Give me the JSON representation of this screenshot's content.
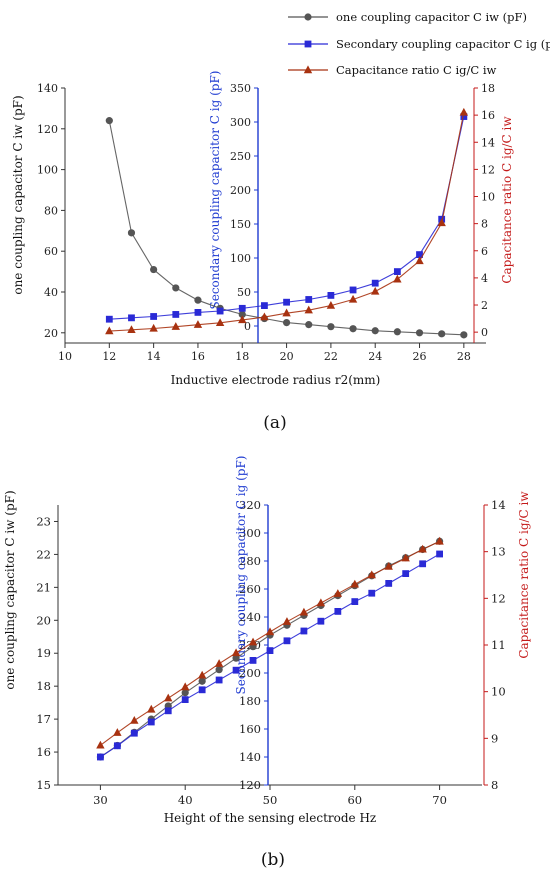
{
  "chart_data": [
    {
      "type": "line",
      "panel_label": "(a)",
      "xlabel": "Inductive electrode radius r2(mm)",
      "x_ticks": [
        "10",
        "12",
        "14",
        "16",
        "18",
        "20",
        "22",
        "24",
        "26",
        "28"
      ],
      "xlim": [
        10,
        29
      ],
      "axes": [
        {
          "id": "left",
          "label": "one coupling capacitor C iw (pF)",
          "ylim": [
            15,
            140
          ],
          "ticks": [
            "20",
            "40",
            "60",
            "80",
            "100",
            "120",
            "140"
          ],
          "color": "#333333"
        },
        {
          "id": "mid",
          "label": "Secondary coupling capacitor C ig (pF)",
          "ylim": [
            -25,
            350
          ],
          "ticks": [
            "0",
            "50",
            "100",
            "150",
            "200",
            "250",
            "300",
            "350"
          ],
          "color": "#1f3bd1"
        },
        {
          "id": "right",
          "label": "Capacitance ratio C ig/C iw",
          "ylim": [
            -0.8,
            18
          ],
          "ticks": [
            "0",
            "2",
            "4",
            "6",
            "8",
            "10",
            "12",
            "14",
            "16",
            "18"
          ],
          "color": "#c41a1a"
        }
      ],
      "legend": [
        {
          "text": "one coupling capacitor C iw (pF)",
          "color": "#555555",
          "marker": "circle"
        },
        {
          "text": "Secondary coupling capacitor C ig (pF)",
          "color": "#2a2ad6",
          "marker": "square"
        },
        {
          "text": "Capacitance ratio C ig/C iw",
          "color": "#a83210",
          "marker": "triangle"
        }
      ],
      "legend_position": "top-right",
      "x": [
        12,
        13,
        14,
        15,
        16,
        17,
        18,
        19,
        20,
        21,
        22,
        23,
        24,
        25,
        26,
        27,
        28
      ],
      "series": [
        {
          "axis": "left",
          "color": "#555555",
          "marker": "circle",
          "values": [
            124,
            69,
            51,
            42,
            36,
            32,
            29,
            27,
            25,
            24,
            23,
            22,
            21,
            20.5,
            20,
            19.5,
            19
          ]
        },
        {
          "axis": "mid",
          "color": "#2a2ad6",
          "marker": "square",
          "values": [
            10,
            12,
            14,
            17,
            20,
            22,
            26,
            30,
            35,
            39,
            45,
            53,
            63,
            80,
            105,
            157,
            308
          ]
        },
        {
          "axis": "right",
          "color": "#a83210",
          "marker": "triangle",
          "values": [
            0.08,
            0.17,
            0.27,
            0.4,
            0.55,
            0.69,
            0.9,
            1.11,
            1.4,
            1.62,
            1.96,
            2.41,
            3.0,
            3.9,
            5.25,
            8.05,
            16.2
          ]
        }
      ]
    },
    {
      "type": "line",
      "panel_label": "(b)",
      "xlabel": "Height of the sensing electrode Hz",
      "x_ticks": [
        "30",
        "40",
        "50",
        "60",
        "70"
      ],
      "xlim": [
        25,
        75
      ],
      "axes": [
        {
          "id": "left",
          "label": "one coupling capacitor C iw (pF)",
          "ylim": [
            15,
            23.5
          ],
          "ticks": [
            "15",
            "16",
            "17",
            "18",
            "19",
            "20",
            "21",
            "22",
            "23"
          ],
          "color": "#333333"
        },
        {
          "id": "mid",
          "label": "Secondary coupling capacitor C ig (pF)",
          "ylim": [
            120,
            320
          ],
          "ticks": [
            "120",
            "140",
            "160",
            "180",
            "200",
            "220",
            "240",
            "260",
            "280",
            "300",
            "320"
          ],
          "color": "#1f3bd1"
        },
        {
          "id": "right",
          "label": "Capacitance ratio C ig/C iw",
          "ylim": [
            8,
            14
          ],
          "ticks": [
            "8",
            "9",
            "10",
            "11",
            "12",
            "13",
            "14"
          ],
          "color": "#c41a1a"
        }
      ],
      "x": [
        30,
        32,
        34,
        36,
        38,
        40,
        42,
        44,
        46,
        48,
        50,
        52,
        54,
        56,
        58,
        60,
        62,
        64,
        66,
        68,
        70
      ],
      "series": [
        {
          "axis": "left",
          "color": "#555555",
          "marker": "circle",
          "values": [
            15.85,
            16.2,
            16.6,
            17.0,
            17.4,
            17.8,
            18.15,
            18.5,
            18.85,
            19.2,
            19.55,
            19.85,
            20.15,
            20.45,
            20.75,
            21.05,
            21.35,
            21.65,
            21.9,
            22.15,
            22.4
          ]
        },
        {
          "axis": "mid",
          "color": "#2a2ad6",
          "marker": "square",
          "values": [
            140,
            148,
            157,
            165,
            173,
            181,
            188,
            195,
            202,
            209,
            216,
            223,
            230,
            237,
            244,
            251,
            257,
            264,
            271,
            278,
            285
          ]
        },
        {
          "axis": "right",
          "color": "#a83210",
          "marker": "triangle",
          "values": [
            8.85,
            9.12,
            9.38,
            9.62,
            9.86,
            10.1,
            10.35,
            10.6,
            10.83,
            11.06,
            11.28,
            11.5,
            11.7,
            11.9,
            12.1,
            12.3,
            12.5,
            12.68,
            12.86,
            13.05,
            13.22
          ]
        }
      ]
    }
  ]
}
